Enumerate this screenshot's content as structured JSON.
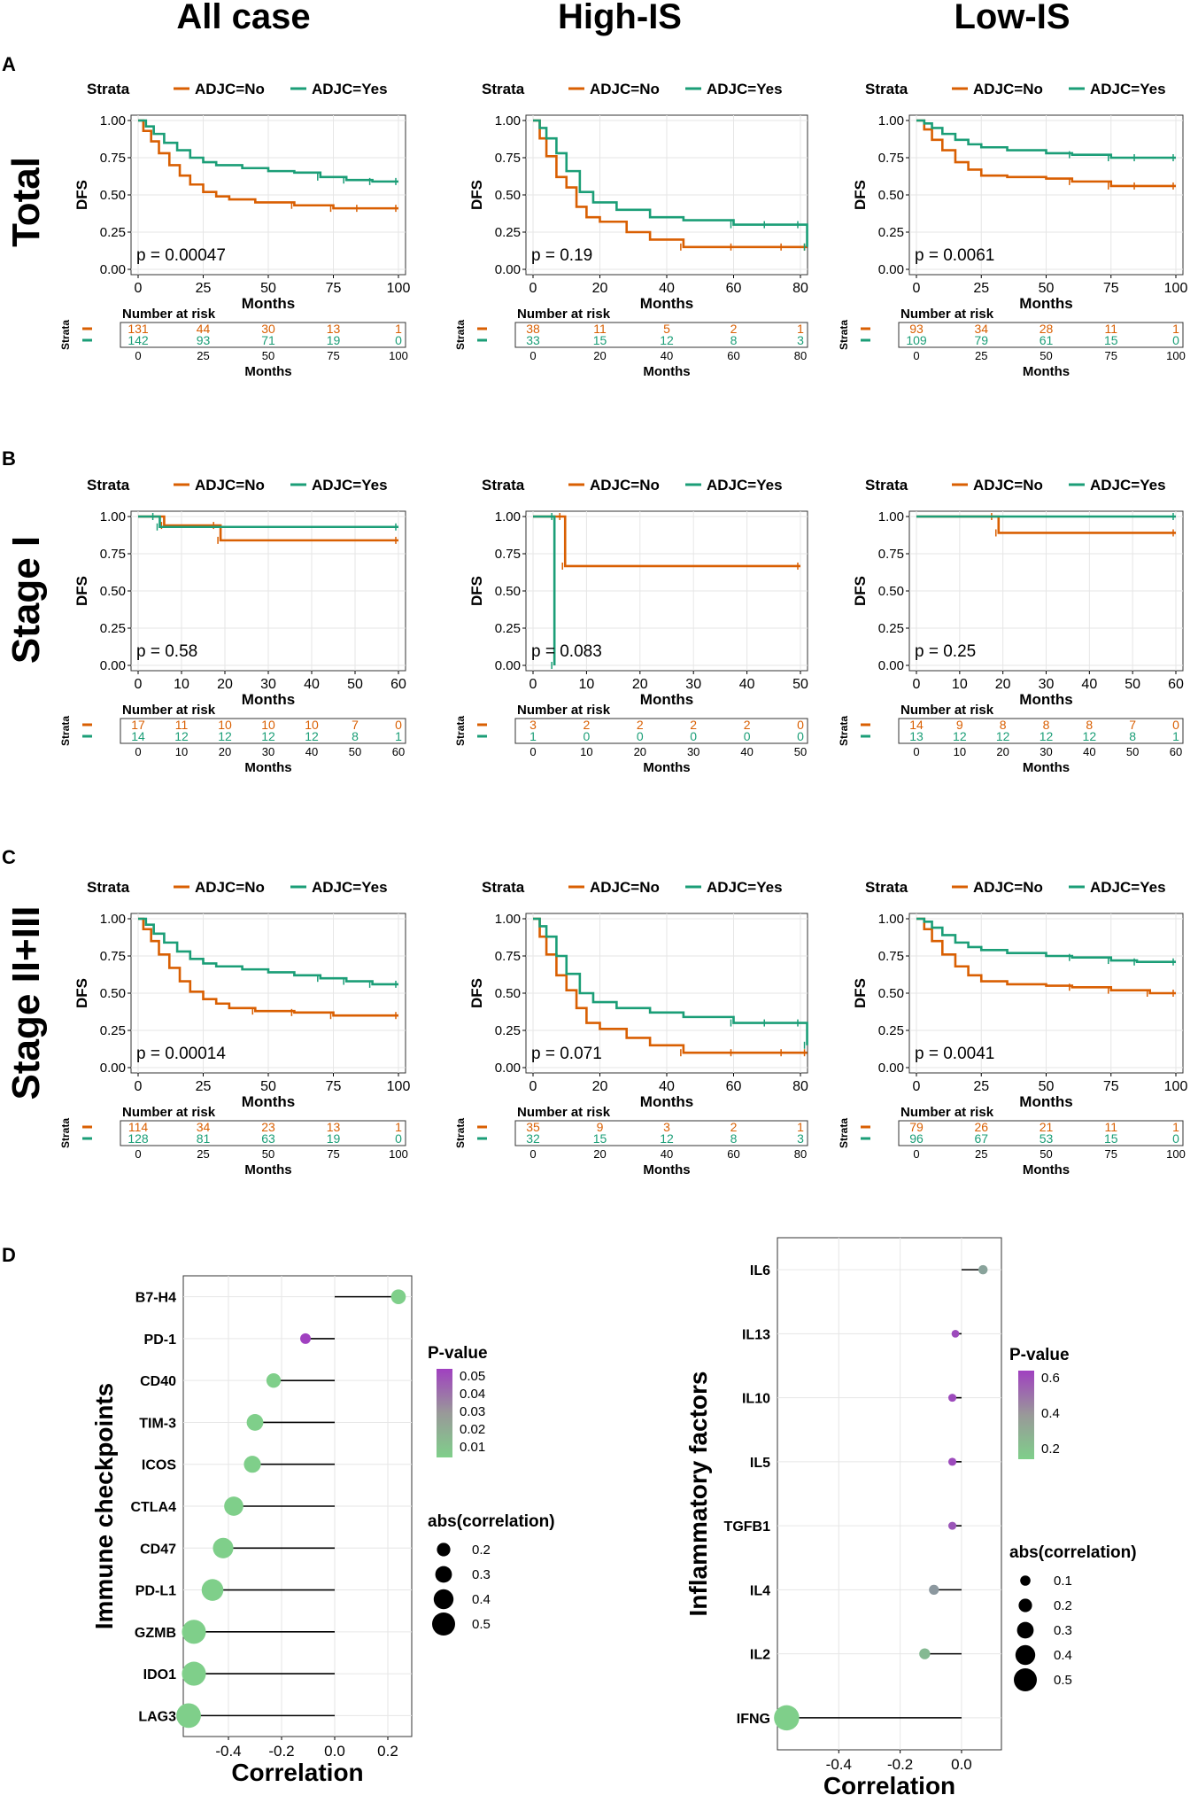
{
  "colors": {
    "no": "#d95f02",
    "yes": "#1b9e77",
    "grid": "#e6e6e6",
    "frame": "#333333",
    "pv_low": "#7fcf8a",
    "pv_high": "#a040c0"
  },
  "column_headers": [
    "All case",
    "High-IS",
    "Low-IS"
  ],
  "panel_letters": [
    "A",
    "B",
    "C",
    "D"
  ],
  "row_labels": [
    "Total",
    "Stage I",
    "Stage II+III"
  ],
  "km_text": {
    "strata_title": "Strata",
    "legend_no": "ADJC=No",
    "legend_yes": "ADJC=Yes",
    "ylabel": "DFS",
    "xlabel": "Months",
    "risk_title": "Number at risk",
    "risk_ylabel": "Strata"
  },
  "chart_data": [
    {
      "type": "line",
      "id": "total_all",
      "title": "Total / All case",
      "ylabel": "DFS",
      "xlabel": "Months",
      "ylim": [
        0,
        1
      ],
      "xlim": [
        0,
        100
      ],
      "xticks": [
        0,
        25,
        50,
        75,
        100
      ],
      "yticks": [
        0,
        0.25,
        0.5,
        0.75,
        1
      ],
      "pvalue": "p = 0.00047",
      "series": [
        {
          "name": "ADJC=No",
          "x": [
            0,
            2,
            5,
            8,
            12,
            16,
            20,
            25,
            30,
            35,
            45,
            60,
            75,
            85,
            100
          ],
          "y": [
            1,
            0.93,
            0.86,
            0.78,
            0.7,
            0.63,
            0.57,
            0.52,
            0.49,
            0.47,
            0.45,
            0.43,
            0.41,
            0.41,
            0.41
          ]
        },
        {
          "name": "ADJC=Yes",
          "x": [
            0,
            3,
            6,
            10,
            15,
            20,
            25,
            30,
            40,
            50,
            60,
            70,
            80,
            90,
            100
          ],
          "y": [
            1,
            0.96,
            0.91,
            0.85,
            0.8,
            0.75,
            0.72,
            0.7,
            0.68,
            0.66,
            0.65,
            0.62,
            0.6,
            0.59,
            0.59
          ]
        }
      ],
      "risk_times": [
        "0",
        "25",
        "50",
        "75",
        "100"
      ],
      "risk_no": [
        "131",
        "44",
        "30",
        "13",
        "1"
      ],
      "risk_yes": [
        "142",
        "93",
        "71",
        "19",
        "0"
      ]
    },
    {
      "type": "line",
      "id": "total_high",
      "title": "Total / High-IS",
      "ylabel": "DFS",
      "xlabel": "Months",
      "ylim": [
        0,
        1
      ],
      "xlim": [
        0,
        80
      ],
      "xticks": [
        0,
        20,
        40,
        60,
        80
      ],
      "yticks": [
        0,
        0.25,
        0.5,
        0.75,
        1
      ],
      "pvalue": "p = 0.19",
      "series": [
        {
          "name": "ADJC=No",
          "x": [
            0,
            2,
            4,
            7,
            10,
            13,
            16,
            20,
            28,
            35,
            45,
            60,
            75,
            82
          ],
          "y": [
            1,
            0.88,
            0.76,
            0.62,
            0.55,
            0.42,
            0.35,
            0.32,
            0.25,
            0.2,
            0.15,
            0.15,
            0.15,
            0.15
          ]
        },
        {
          "name": "ADJC=Yes",
          "x": [
            0,
            2,
            4,
            7,
            10,
            14,
            18,
            25,
            35,
            45,
            60,
            70,
            80,
            82
          ],
          "y": [
            1,
            0.95,
            0.88,
            0.78,
            0.66,
            0.52,
            0.45,
            0.4,
            0.35,
            0.33,
            0.3,
            0.3,
            0.3,
            0.15
          ]
        }
      ],
      "risk_times": [
        "0",
        "20",
        "40",
        "60",
        "80"
      ],
      "risk_no": [
        "38",
        "11",
        "5",
        "2",
        "1"
      ],
      "risk_yes": [
        "33",
        "15",
        "12",
        "8",
        "3"
      ]
    },
    {
      "type": "line",
      "id": "total_low",
      "title": "Total / Low-IS",
      "ylabel": "DFS",
      "xlabel": "Months",
      "ylim": [
        0,
        1
      ],
      "xlim": [
        0,
        100
      ],
      "xticks": [
        0,
        25,
        50,
        75,
        100
      ],
      "yticks": [
        0,
        0.25,
        0.5,
        0.75,
        1
      ],
      "pvalue": "p = 0.0061",
      "series": [
        {
          "name": "ADJC=No",
          "x": [
            0,
            3,
            6,
            10,
            15,
            20,
            25,
            35,
            50,
            60,
            75,
            85,
            100
          ],
          "y": [
            1,
            0.94,
            0.87,
            0.8,
            0.72,
            0.67,
            0.63,
            0.62,
            0.61,
            0.59,
            0.56,
            0.56,
            0.56
          ]
        },
        {
          "name": "ADJC=Yes",
          "x": [
            0,
            3,
            6,
            10,
            15,
            20,
            25,
            35,
            50,
            60,
            75,
            85,
            100
          ],
          "y": [
            1,
            0.98,
            0.95,
            0.91,
            0.87,
            0.84,
            0.82,
            0.8,
            0.78,
            0.77,
            0.75,
            0.75,
            0.75
          ]
        }
      ],
      "risk_times": [
        "0",
        "25",
        "50",
        "75",
        "100"
      ],
      "risk_no": [
        "93",
        "34",
        "28",
        "11",
        "1"
      ],
      "risk_yes": [
        "109",
        "79",
        "61",
        "15",
        "0"
      ]
    },
    {
      "type": "line",
      "id": "s1_all",
      "title": "Stage I / All case",
      "ylabel": "DFS",
      "xlabel": "Months",
      "ylim": [
        0,
        1
      ],
      "xlim": [
        0,
        60
      ],
      "xticks": [
        0,
        10,
        20,
        30,
        40,
        50,
        60
      ],
      "yticks": [
        0,
        0.25,
        0.5,
        0.75,
        1
      ],
      "pvalue": "p = 0.58",
      "series": [
        {
          "name": "ADJC=No",
          "x": [
            0,
            4,
            6,
            18,
            19,
            60
          ],
          "y": [
            1,
            1,
            0.94,
            0.94,
            0.84,
            0.84
          ]
        },
        {
          "name": "ADJC=Yes",
          "x": [
            0,
            4,
            5,
            60
          ],
          "y": [
            1,
            1,
            0.93,
            0.93
          ]
        }
      ],
      "risk_times": [
        "0",
        "10",
        "20",
        "30",
        "40",
        "50",
        "60"
      ],
      "risk_no": [
        "17",
        "11",
        "10",
        "10",
        "10",
        "7",
        "0"
      ],
      "risk_yes": [
        "14",
        "12",
        "12",
        "12",
        "12",
        "8",
        "1"
      ]
    },
    {
      "type": "line",
      "id": "s1_high",
      "title": "Stage I / High-IS",
      "ylabel": "DFS",
      "xlabel": "Months",
      "ylim": [
        0,
        1
      ],
      "xlim": [
        0,
        50
      ],
      "xticks": [
        0,
        10,
        20,
        30,
        40,
        50
      ],
      "yticks": [
        0,
        0.25,
        0.5,
        0.75,
        1
      ],
      "pvalue": "p = 0.083",
      "series": [
        {
          "name": "ADJC=No",
          "x": [
            0,
            5.5,
            6,
            50
          ],
          "y": [
            1,
            1,
            0.667,
            0.667
          ]
        },
        {
          "name": "ADJC=Yes",
          "x": [
            0,
            4,
            4
          ],
          "y": [
            1,
            1,
            0
          ]
        }
      ],
      "risk_times": [
        "0",
        "10",
        "20",
        "30",
        "40",
        "50"
      ],
      "risk_no": [
        "3",
        "2",
        "2",
        "2",
        "2",
        "0"
      ],
      "risk_yes": [
        "1",
        "0",
        "0",
        "0",
        "0",
        "0"
      ]
    },
    {
      "type": "line",
      "id": "s1_low",
      "title": "Stage I / Low-IS",
      "ylabel": "DFS",
      "xlabel": "Months",
      "ylim": [
        0,
        1
      ],
      "xlim": [
        0,
        60
      ],
      "xticks": [
        0,
        10,
        20,
        30,
        40,
        50,
        60
      ],
      "yticks": [
        0,
        0.25,
        0.5,
        0.75,
        1
      ],
      "pvalue": "p = 0.25",
      "series": [
        {
          "name": "ADJC=No",
          "x": [
            0,
            18,
            19,
            60
          ],
          "y": [
            1,
            1,
            0.89,
            0.89
          ]
        },
        {
          "name": "ADJC=Yes",
          "x": [
            0,
            60
          ],
          "y": [
            1,
            1
          ]
        }
      ],
      "risk_times": [
        "0",
        "10",
        "20",
        "30",
        "40",
        "50",
        "60"
      ],
      "risk_no": [
        "14",
        "9",
        "8",
        "8",
        "8",
        "7",
        "0"
      ],
      "risk_yes": [
        "13",
        "12",
        "12",
        "12",
        "12",
        "8",
        "1"
      ]
    },
    {
      "type": "line",
      "id": "s23_all",
      "title": "Stage II+III / All case",
      "ylabel": "DFS",
      "xlabel": "Months",
      "ylim": [
        0,
        1
      ],
      "xlim": [
        0,
        100
      ],
      "xticks": [
        0,
        25,
        50,
        75,
        100
      ],
      "yticks": [
        0,
        0.25,
        0.5,
        0.75,
        1
      ],
      "pvalue": "p = 0.00014",
      "series": [
        {
          "name": "ADJC=No",
          "x": [
            0,
            2,
            5,
            8,
            12,
            16,
            20,
            25,
            30,
            35,
            45,
            60,
            75,
            100
          ],
          "y": [
            1,
            0.93,
            0.85,
            0.76,
            0.67,
            0.58,
            0.51,
            0.46,
            0.43,
            0.4,
            0.38,
            0.37,
            0.35,
            0.35
          ]
        },
        {
          "name": "ADJC=Yes",
          "x": [
            0,
            3,
            6,
            10,
            15,
            20,
            25,
            30,
            40,
            50,
            60,
            70,
            80,
            90,
            100
          ],
          "y": [
            1,
            0.96,
            0.9,
            0.84,
            0.78,
            0.73,
            0.7,
            0.68,
            0.66,
            0.64,
            0.62,
            0.6,
            0.58,
            0.56,
            0.56
          ]
        }
      ],
      "risk_times": [
        "0",
        "25",
        "50",
        "75",
        "100"
      ],
      "risk_no": [
        "114",
        "34",
        "23",
        "13",
        "1"
      ],
      "risk_yes": [
        "128",
        "81",
        "63",
        "19",
        "0"
      ]
    },
    {
      "type": "line",
      "id": "s23_high",
      "title": "Stage II+III / High-IS",
      "ylabel": "DFS",
      "xlabel": "Months",
      "ylim": [
        0,
        1
      ],
      "xlim": [
        0,
        80
      ],
      "xticks": [
        0,
        20,
        40,
        60,
        80
      ],
      "yticks": [
        0,
        0.25,
        0.5,
        0.75,
        1
      ],
      "pvalue": "p = 0.071",
      "series": [
        {
          "name": "ADJC=No",
          "x": [
            0,
            2,
            4,
            7,
            10,
            13,
            16,
            20,
            28,
            35,
            45,
            60,
            75,
            82
          ],
          "y": [
            1,
            0.88,
            0.76,
            0.62,
            0.52,
            0.4,
            0.3,
            0.26,
            0.2,
            0.15,
            0.1,
            0.1,
            0.1,
            0.1
          ]
        },
        {
          "name": "ADJC=Yes",
          "x": [
            0,
            2,
            4,
            7,
            10,
            14,
            18,
            25,
            35,
            45,
            60,
            70,
            80,
            82
          ],
          "y": [
            1,
            0.95,
            0.88,
            0.75,
            0.63,
            0.5,
            0.44,
            0.4,
            0.37,
            0.34,
            0.3,
            0.3,
            0.3,
            0.15
          ]
        }
      ],
      "risk_times": [
        "0",
        "20",
        "40",
        "60",
        "80"
      ],
      "risk_no": [
        "35",
        "9",
        "3",
        "2",
        "1"
      ],
      "risk_yes": [
        "32",
        "15",
        "12",
        "8",
        "3"
      ]
    },
    {
      "type": "line",
      "id": "s23_low",
      "title": "Stage II+III / Low-IS",
      "ylabel": "DFS",
      "xlabel": "Months",
      "ylim": [
        0,
        1
      ],
      "xlim": [
        0,
        100
      ],
      "xticks": [
        0,
        25,
        50,
        75,
        100
      ],
      "yticks": [
        0,
        0.25,
        0.5,
        0.75,
        1
      ],
      "pvalue": "p = 0.0041",
      "series": [
        {
          "name": "ADJC=No",
          "x": [
            0,
            3,
            6,
            10,
            15,
            20,
            25,
            35,
            50,
            60,
            75,
            90,
            100
          ],
          "y": [
            1,
            0.93,
            0.85,
            0.76,
            0.68,
            0.62,
            0.58,
            0.56,
            0.55,
            0.54,
            0.52,
            0.5,
            0.5
          ]
        },
        {
          "name": "ADJC=Yes",
          "x": [
            0,
            3,
            6,
            10,
            15,
            20,
            25,
            35,
            50,
            60,
            75,
            85,
            100
          ],
          "y": [
            1,
            0.98,
            0.94,
            0.89,
            0.84,
            0.81,
            0.79,
            0.77,
            0.75,
            0.74,
            0.72,
            0.71,
            0.71
          ]
        }
      ],
      "risk_times": [
        "0",
        "25",
        "50",
        "75",
        "100"
      ],
      "risk_no": [
        "79",
        "26",
        "21",
        "11",
        "1"
      ],
      "risk_yes": [
        "96",
        "67",
        "53",
        "15",
        "0"
      ]
    },
    {
      "type": "scatter",
      "id": "lollipop_checkpoints",
      "ylabel": "Immune checkpoints",
      "xlabel": "Correlation",
      "xlim": [
        -0.57,
        0.29
      ],
      "xticks": [
        "-0.4",
        "-0.2",
        "0.0",
        "0.2"
      ],
      "xtick_values": [
        -0.4,
        -0.2,
        0,
        0.2
      ],
      "categories": [
        "B7-H4",
        "PD-1",
        "CD40",
        "TIM-3",
        "ICOS",
        "CTLA4",
        "CD47",
        "PD-L1",
        "GZMB",
        "IDO1",
        "LAG3"
      ],
      "values": [
        0.24,
        -0.11,
        -0.23,
        -0.3,
        -0.31,
        -0.38,
        -0.42,
        -0.46,
        -0.53,
        -0.53,
        -0.55
      ],
      "pvalues": [
        0.005,
        0.055,
        0.005,
        0.005,
        0.005,
        0.005,
        0.005,
        0.005,
        0.005,
        0.005,
        0.005
      ],
      "legend_p_title": "P-value",
      "legend_p_ticks": [
        "0.05",
        "0.04",
        "0.03",
        "0.02",
        "0.01"
      ],
      "legend_p_range": [
        0.005,
        0.055
      ],
      "legend_size_title": "abs(correlation)",
      "legend_size_ticks": [
        "0.2",
        "0.3",
        "0.4",
        "0.5"
      ]
    },
    {
      "type": "scatter",
      "id": "lollipop_inflammatory",
      "ylabel": "Inflammatory factors",
      "xlabel": "Correlation",
      "xlim": [
        -0.6,
        0.13
      ],
      "xticks": [
        "-0.4",
        "-0.2",
        "0.0"
      ],
      "xtick_values": [
        -0.4,
        -0.2,
        0
      ],
      "categories": [
        "IL6",
        "IL13",
        "IL10",
        "IL5",
        "TGFB1",
        "IL4",
        "IL2",
        "IFNG"
      ],
      "values": [
        0.07,
        -0.02,
        -0.03,
        -0.03,
        -0.03,
        -0.09,
        -0.12,
        -0.57
      ],
      "pvalues": [
        0.25,
        0.65,
        0.65,
        0.65,
        0.6,
        0.3,
        0.15,
        0.01
      ],
      "legend_p_title": "P-value",
      "legend_p_ticks": [
        "0.6",
        "0.4",
        "0.2"
      ],
      "legend_p_range": [
        0.05,
        0.7
      ],
      "legend_size_title": "abs(correlation)",
      "legend_size_ticks": [
        "0.1",
        "0.2",
        "0.3",
        "0.4",
        "0.5"
      ]
    }
  ]
}
